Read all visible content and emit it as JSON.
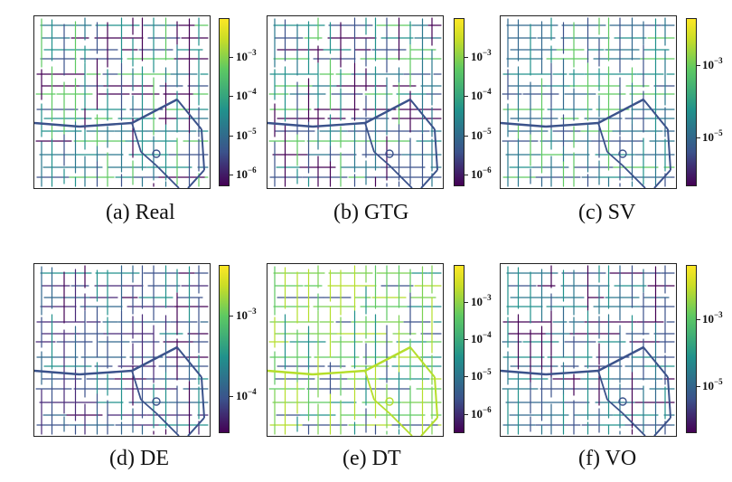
{
  "figure": {
    "panels": [
      {
        "caption": "(a) Real",
        "colorbar": {
          "ticks": [
            {
              "base": "10",
              "exp": "−3"
            },
            {
              "base": "10",
              "exp": "−4"
            },
            {
              "base": "10",
              "exp": "−5"
            },
            {
              "base": "10",
              "exp": "−6"
            }
          ]
        }
      },
      {
        "caption": "(b) GTG",
        "colorbar": {
          "ticks": [
            {
              "base": "10",
              "exp": "−3"
            },
            {
              "base": "10",
              "exp": "−4"
            },
            {
              "base": "10",
              "exp": "−5"
            },
            {
              "base": "10",
              "exp": "−6"
            }
          ]
        }
      },
      {
        "caption": "(c) SV",
        "colorbar": {
          "ticks": [
            {
              "base": "10",
              "exp": "−3"
            },
            {
              "base": "10",
              "exp": "−5"
            }
          ]
        }
      },
      {
        "caption": "(d) DE",
        "colorbar": {
          "ticks": [
            {
              "base": "10",
              "exp": "−3"
            },
            {
              "base": "10",
              "exp": "−4"
            }
          ]
        }
      },
      {
        "caption": "(e) DT",
        "colorbar": {
          "ticks": [
            {
              "base": "10",
              "exp": "−3"
            },
            {
              "base": "10",
              "exp": "−4"
            },
            {
              "base": "10",
              "exp": "−5"
            },
            {
              "base": "10",
              "exp": "−6"
            }
          ]
        }
      },
      {
        "caption": "(f) VO",
        "colorbar": {
          "ticks": [
            {
              "base": "10",
              "exp": "−3"
            },
            {
              "base": "10",
              "exp": "−5"
            }
          ]
        }
      }
    ],
    "colors": {
      "viridis_dark": "#440154",
      "viridis_blue": "#3b528b",
      "viridis_teal": "#21918c",
      "viridis_green": "#5ec962",
      "viridis_yellow": "#fde725"
    }
  }
}
